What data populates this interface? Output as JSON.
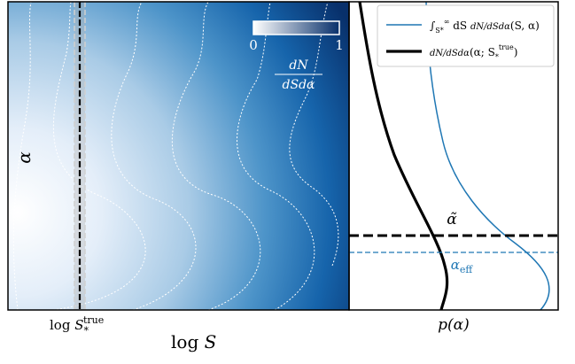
{
  "chart_data": [
    {
      "type": "heatmap",
      "xlabel": "log S",
      "ylabel": "α",
      "x_tick_labels": [
        {
          "text": "log S",
          "superscript": "true",
          "subscript": "*"
        }
      ],
      "colorbar": {
        "min_label": "0",
        "max_label": "1",
        "label_numerator": "dN",
        "label_denominator": "dSdα",
        "cmap": [
          "#ffffff",
          "#08306b"
        ]
      },
      "contours": {
        "style": "dotted",
        "color": "#ffffff",
        "count": 6
      },
      "marker_line": {
        "style": "dashed",
        "color": "#000000",
        "band_color": "#9e9e9e"
      },
      "grid": false
    },
    {
      "type": "line",
      "xlabel": "p(α)",
      "ylabel": "",
      "legend": {
        "placement": "top-right",
        "entries": [
          {
            "label": "∫S*∞ dS dN/dSdα(S, α)",
            "color": "#1f77b4"
          },
          {
            "label": "dN/dSdα(α; S*true)",
            "color": "#000000"
          }
        ]
      },
      "hlines": [
        {
          "label": "α̃",
          "style": "dashed",
          "color": "#000000"
        },
        {
          "label": "αeff",
          "style": "dashed",
          "color": "#1f77b4"
        }
      ],
      "grid": false
    }
  ]
}
